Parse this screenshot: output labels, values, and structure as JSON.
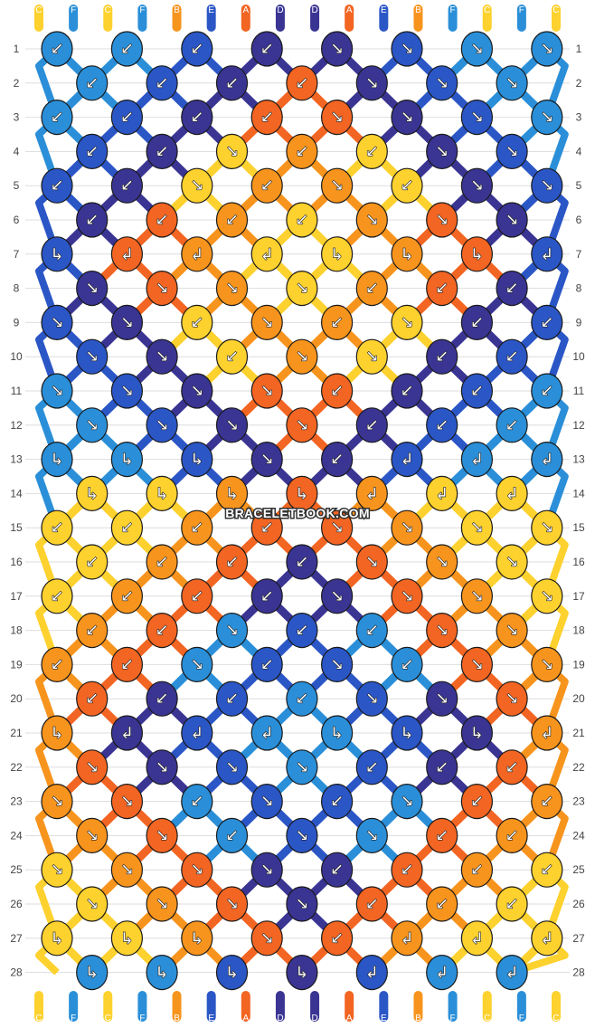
{
  "watermark": "BRACELETBOOK.COM",
  "colors": {
    "A": "#f26522",
    "B": "#f7941d",
    "C": "#fdd12e",
    "D": "#3a3593",
    "E": "#2b56c6",
    "F": "#2a8fd8"
  },
  "strands_top": [
    "C",
    "F",
    "C",
    "F",
    "B",
    "E",
    "A",
    "D",
    "D",
    "A",
    "E",
    "B",
    "F",
    "C",
    "F",
    "C"
  ],
  "strands_bottom": [
    "C",
    "F",
    "C",
    "F",
    "B",
    "E",
    "A",
    "D",
    "D",
    "A",
    "E",
    "B",
    "F",
    "C",
    "F",
    "C"
  ],
  "rows": [
    {
      "number": "1",
      "knots": [
        {
          "color": "F",
          "dir": "down-left"
        },
        {
          "color": "F",
          "dir": "down-left"
        },
        {
          "color": "E",
          "dir": "down-left"
        },
        {
          "color": "D",
          "dir": "down-left"
        },
        {
          "color": "D",
          "dir": "down-right"
        },
        {
          "color": "E",
          "dir": "down-right"
        },
        {
          "color": "F",
          "dir": "down-right"
        },
        {
          "color": "F",
          "dir": "down-right"
        }
      ]
    },
    {
      "number": "2",
      "knots": [
        {
          "color": "F",
          "dir": "down-left"
        },
        {
          "color": "E",
          "dir": "down-left"
        },
        {
          "color": "D",
          "dir": "down-left"
        },
        {
          "color": "A",
          "dir": "down-left"
        },
        {
          "color": "D",
          "dir": "down-right"
        },
        {
          "color": "E",
          "dir": "down-right"
        },
        {
          "color": "F",
          "dir": "down-right"
        }
      ]
    },
    {
      "number": "3",
      "knots": [
        {
          "color": "F",
          "dir": "down-left"
        },
        {
          "color": "E",
          "dir": "down-left"
        },
        {
          "color": "D",
          "dir": "down-left"
        },
        {
          "color": "A",
          "dir": "down-left"
        },
        {
          "color": "A",
          "dir": "down-right"
        },
        {
          "color": "D",
          "dir": "down-right"
        },
        {
          "color": "E",
          "dir": "down-right"
        },
        {
          "color": "F",
          "dir": "down-right"
        }
      ]
    },
    {
      "number": "4",
      "knots": [
        {
          "color": "E",
          "dir": "down-left"
        },
        {
          "color": "D",
          "dir": "down-left"
        },
        {
          "color": "C",
          "dir": "down-right"
        },
        {
          "color": "B",
          "dir": "down-left"
        },
        {
          "color": "C",
          "dir": "down-left"
        },
        {
          "color": "D",
          "dir": "down-right"
        },
        {
          "color": "E",
          "dir": "down-right"
        }
      ]
    },
    {
      "number": "5",
      "knots": [
        {
          "color": "E",
          "dir": "down-left"
        },
        {
          "color": "D",
          "dir": "down-left"
        },
        {
          "color": "C",
          "dir": "down-right"
        },
        {
          "color": "B",
          "dir": "down-left"
        },
        {
          "color": "B",
          "dir": "down-right"
        },
        {
          "color": "C",
          "dir": "down-left"
        },
        {
          "color": "D",
          "dir": "down-right"
        },
        {
          "color": "E",
          "dir": "down-right"
        }
      ]
    },
    {
      "number": "6",
      "knots": [
        {
          "color": "D",
          "dir": "down-left"
        },
        {
          "color": "A",
          "dir": "down-left"
        },
        {
          "color": "B",
          "dir": "down-left"
        },
        {
          "color": "C",
          "dir": "down-left"
        },
        {
          "color": "B",
          "dir": "down-right"
        },
        {
          "color": "A",
          "dir": "down-right"
        },
        {
          "color": "D",
          "dir": "down-right"
        }
      ]
    },
    {
      "number": "7",
      "knots": [
        {
          "color": "E",
          "dir": "right-down"
        },
        {
          "color": "A",
          "dir": "left-down"
        },
        {
          "color": "B",
          "dir": "left-down"
        },
        {
          "color": "C",
          "dir": "left-down"
        },
        {
          "color": "C",
          "dir": "right-down"
        },
        {
          "color": "B",
          "dir": "right-down"
        },
        {
          "color": "A",
          "dir": "right-down"
        },
        {
          "color": "E",
          "dir": "left-down"
        }
      ]
    },
    {
      "number": "8",
      "knots": [
        {
          "color": "D",
          "dir": "down-right"
        },
        {
          "color": "A",
          "dir": "down-right"
        },
        {
          "color": "B",
          "dir": "down-right"
        },
        {
          "color": "C",
          "dir": "down-right"
        },
        {
          "color": "B",
          "dir": "down-left"
        },
        {
          "color": "A",
          "dir": "down-left"
        },
        {
          "color": "D",
          "dir": "down-left"
        }
      ]
    },
    {
      "number": "9",
      "knots": [
        {
          "color": "E",
          "dir": "down-right"
        },
        {
          "color": "D",
          "dir": "down-right"
        },
        {
          "color": "C",
          "dir": "down-left"
        },
        {
          "color": "B",
          "dir": "down-right"
        },
        {
          "color": "B",
          "dir": "down-left"
        },
        {
          "color": "C",
          "dir": "down-right"
        },
        {
          "color": "D",
          "dir": "down-left"
        },
        {
          "color": "E",
          "dir": "down-left"
        }
      ]
    },
    {
      "number": "10",
      "knots": [
        {
          "color": "E",
          "dir": "down-right"
        },
        {
          "color": "D",
          "dir": "down-right"
        },
        {
          "color": "C",
          "dir": "down-left"
        },
        {
          "color": "B",
          "dir": "down-right"
        },
        {
          "color": "C",
          "dir": "down-right"
        },
        {
          "color": "D",
          "dir": "down-left"
        },
        {
          "color": "E",
          "dir": "down-left"
        }
      ]
    },
    {
      "number": "11",
      "knots": [
        {
          "color": "F",
          "dir": "down-right"
        },
        {
          "color": "E",
          "dir": "down-right"
        },
        {
          "color": "D",
          "dir": "down-right"
        },
        {
          "color": "A",
          "dir": "down-right"
        },
        {
          "color": "A",
          "dir": "down-left"
        },
        {
          "color": "D",
          "dir": "down-left"
        },
        {
          "color": "E",
          "dir": "down-left"
        },
        {
          "color": "F",
          "dir": "down-left"
        }
      ]
    },
    {
      "number": "12",
      "knots": [
        {
          "color": "F",
          "dir": "down-right"
        },
        {
          "color": "E",
          "dir": "down-right"
        },
        {
          "color": "D",
          "dir": "down-right"
        },
        {
          "color": "A",
          "dir": "down-right"
        },
        {
          "color": "D",
          "dir": "down-left"
        },
        {
          "color": "E",
          "dir": "down-left"
        },
        {
          "color": "F",
          "dir": "down-left"
        }
      ]
    },
    {
      "number": "13",
      "knots": [
        {
          "color": "F",
          "dir": "right-down"
        },
        {
          "color": "F",
          "dir": "right-down"
        },
        {
          "color": "E",
          "dir": "right-down"
        },
        {
          "color": "D",
          "dir": "down-right"
        },
        {
          "color": "D",
          "dir": "down-left"
        },
        {
          "color": "E",
          "dir": "left-down"
        },
        {
          "color": "F",
          "dir": "left-down"
        },
        {
          "color": "F",
          "dir": "left-down"
        }
      ]
    },
    {
      "number": "14",
      "knots": [
        {
          "color": "C",
          "dir": "right-down"
        },
        {
          "color": "C",
          "dir": "right-down"
        },
        {
          "color": "B",
          "dir": "right-down"
        },
        {
          "color": "A",
          "dir": "right-down"
        },
        {
          "color": "B",
          "dir": "left-down"
        },
        {
          "color": "C",
          "dir": "left-down"
        },
        {
          "color": "C",
          "dir": "left-down"
        }
      ]
    },
    {
      "number": "15",
      "knots": [
        {
          "color": "C",
          "dir": "down-left"
        },
        {
          "color": "C",
          "dir": "down-left"
        },
        {
          "color": "B",
          "dir": "down-left"
        },
        {
          "color": "A",
          "dir": "down-left"
        },
        {
          "color": "A",
          "dir": "down-right"
        },
        {
          "color": "B",
          "dir": "down-right"
        },
        {
          "color": "C",
          "dir": "down-right"
        },
        {
          "color": "C",
          "dir": "down-right"
        }
      ]
    },
    {
      "number": "16",
      "knots": [
        {
          "color": "C",
          "dir": "down-left"
        },
        {
          "color": "B",
          "dir": "down-left"
        },
        {
          "color": "A",
          "dir": "down-left"
        },
        {
          "color": "D",
          "dir": "down-left"
        },
        {
          "color": "A",
          "dir": "down-right"
        },
        {
          "color": "B",
          "dir": "down-right"
        },
        {
          "color": "C",
          "dir": "down-right"
        }
      ]
    },
    {
      "number": "17",
      "knots": [
        {
          "color": "C",
          "dir": "down-left"
        },
        {
          "color": "B",
          "dir": "down-left"
        },
        {
          "color": "A",
          "dir": "down-left"
        },
        {
          "color": "D",
          "dir": "down-left"
        },
        {
          "color": "D",
          "dir": "down-right"
        },
        {
          "color": "A",
          "dir": "down-right"
        },
        {
          "color": "B",
          "dir": "down-right"
        },
        {
          "color": "C",
          "dir": "down-right"
        }
      ]
    },
    {
      "number": "18",
      "knots": [
        {
          "color": "B",
          "dir": "down-left"
        },
        {
          "color": "A",
          "dir": "down-left"
        },
        {
          "color": "F",
          "dir": "down-right"
        },
        {
          "color": "E",
          "dir": "down-left"
        },
        {
          "color": "F",
          "dir": "down-left"
        },
        {
          "color": "A",
          "dir": "down-right"
        },
        {
          "color": "B",
          "dir": "down-right"
        }
      ]
    },
    {
      "number": "19",
      "knots": [
        {
          "color": "B",
          "dir": "down-left"
        },
        {
          "color": "A",
          "dir": "down-left"
        },
        {
          "color": "F",
          "dir": "down-right"
        },
        {
          "color": "E",
          "dir": "down-left"
        },
        {
          "color": "E",
          "dir": "down-right"
        },
        {
          "color": "F",
          "dir": "down-left"
        },
        {
          "color": "A",
          "dir": "down-right"
        },
        {
          "color": "B",
          "dir": "down-right"
        }
      ]
    },
    {
      "number": "20",
      "knots": [
        {
          "color": "A",
          "dir": "down-left"
        },
        {
          "color": "D",
          "dir": "down-left"
        },
        {
          "color": "E",
          "dir": "down-left"
        },
        {
          "color": "F",
          "dir": "down-left"
        },
        {
          "color": "E",
          "dir": "down-right"
        },
        {
          "color": "D",
          "dir": "down-right"
        },
        {
          "color": "A",
          "dir": "down-right"
        }
      ]
    },
    {
      "number": "21",
      "knots": [
        {
          "color": "B",
          "dir": "right-down"
        },
        {
          "color": "D",
          "dir": "left-down"
        },
        {
          "color": "E",
          "dir": "left-down"
        },
        {
          "color": "F",
          "dir": "left-down"
        },
        {
          "color": "F",
          "dir": "right-down"
        },
        {
          "color": "E",
          "dir": "right-down"
        },
        {
          "color": "D",
          "dir": "right-down"
        },
        {
          "color": "B",
          "dir": "left-down"
        }
      ]
    },
    {
      "number": "22",
      "knots": [
        {
          "color": "A",
          "dir": "down-right"
        },
        {
          "color": "D",
          "dir": "down-right"
        },
        {
          "color": "E",
          "dir": "down-right"
        },
        {
          "color": "F",
          "dir": "down-right"
        },
        {
          "color": "E",
          "dir": "down-left"
        },
        {
          "color": "D",
          "dir": "down-left"
        },
        {
          "color": "A",
          "dir": "down-left"
        }
      ]
    },
    {
      "number": "23",
      "knots": [
        {
          "color": "B",
          "dir": "down-right"
        },
        {
          "color": "A",
          "dir": "down-right"
        },
        {
          "color": "F",
          "dir": "down-left"
        },
        {
          "color": "E",
          "dir": "down-right"
        },
        {
          "color": "E",
          "dir": "down-left"
        },
        {
          "color": "F",
          "dir": "down-right"
        },
        {
          "color": "A",
          "dir": "down-left"
        },
        {
          "color": "B",
          "dir": "down-left"
        }
      ]
    },
    {
      "number": "24",
      "knots": [
        {
          "color": "B",
          "dir": "down-right"
        },
        {
          "color": "A",
          "dir": "down-right"
        },
        {
          "color": "F",
          "dir": "down-left"
        },
        {
          "color": "E",
          "dir": "down-right"
        },
        {
          "color": "F",
          "dir": "down-right"
        },
        {
          "color": "A",
          "dir": "down-left"
        },
        {
          "color": "B",
          "dir": "down-left"
        }
      ]
    },
    {
      "number": "25",
      "knots": [
        {
          "color": "C",
          "dir": "down-right"
        },
        {
          "color": "B",
          "dir": "down-right"
        },
        {
          "color": "A",
          "dir": "down-right"
        },
        {
          "color": "D",
          "dir": "down-right"
        },
        {
          "color": "D",
          "dir": "down-left"
        },
        {
          "color": "A",
          "dir": "down-left"
        },
        {
          "color": "B",
          "dir": "down-left"
        },
        {
          "color": "C",
          "dir": "down-left"
        }
      ]
    },
    {
      "number": "26",
      "knots": [
        {
          "color": "C",
          "dir": "down-right"
        },
        {
          "color": "B",
          "dir": "down-right"
        },
        {
          "color": "A",
          "dir": "down-right"
        },
        {
          "color": "D",
          "dir": "down-right"
        },
        {
          "color": "A",
          "dir": "down-left"
        },
        {
          "color": "B",
          "dir": "down-left"
        },
        {
          "color": "C",
          "dir": "down-left"
        }
      ]
    },
    {
      "number": "27",
      "knots": [
        {
          "color": "C",
          "dir": "right-down"
        },
        {
          "color": "C",
          "dir": "right-down"
        },
        {
          "color": "B",
          "dir": "right-down"
        },
        {
          "color": "A",
          "dir": "down-right"
        },
        {
          "color": "A",
          "dir": "down-left"
        },
        {
          "color": "B",
          "dir": "left-down"
        },
        {
          "color": "C",
          "dir": "left-down"
        },
        {
          "color": "C",
          "dir": "left-down"
        }
      ]
    },
    {
      "number": "28",
      "knots": [
        {
          "color": "F",
          "dir": "right-down"
        },
        {
          "color": "F",
          "dir": "right-down"
        },
        {
          "color": "E",
          "dir": "right-down"
        },
        {
          "color": "D",
          "dir": "right-down"
        },
        {
          "color": "E",
          "dir": "left-down"
        },
        {
          "color": "F",
          "dir": "left-down"
        },
        {
          "color": "F",
          "dir": "left-down"
        }
      ]
    }
  ]
}
